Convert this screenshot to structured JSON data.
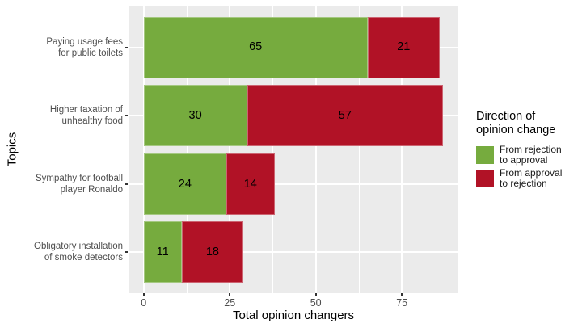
{
  "chart_data": {
    "type": "bar",
    "orientation": "horizontal",
    "stacked": true,
    "title": "",
    "xlabel": "Total opinion changers",
    "ylabel": "Topics",
    "categories": [
      [
        "Paying usage fees",
        "for public toilets"
      ],
      [
        "Higher taxation of",
        "unhealthy food"
      ],
      [
        "Sympathy for football",
        "player Ronaldo"
      ],
      [
        "Obligatory installation",
        "of smoke detectors"
      ]
    ],
    "series": [
      {
        "name": "From rejection to approval",
        "color": "#76ab3e",
        "values": [
          65,
          30,
          24,
          11
        ]
      },
      {
        "name": "From approval to rejection",
        "color": "#b11226",
        "values": [
          21,
          57,
          14,
          18
        ]
      }
    ],
    "totals": [
      86,
      87,
      38,
      29
    ],
    "x_ticks": [
      0,
      25,
      50,
      75
    ],
    "x_minor_ticks": [
      12.5,
      37.5,
      62.5,
      87.5
    ],
    "xlim": [
      -4.4,
      91.4
    ],
    "grid": true,
    "legend_position": "right"
  },
  "legend": {
    "title_lines": [
      "Direction of",
      "opinion change"
    ],
    "items": [
      {
        "label_lines": [
          "From rejection",
          "to approval"
        ],
        "color": "#76ab3e"
      },
      {
        "label_lines": [
          "From approval",
          "to rejection"
        ],
        "color": "#b11226"
      }
    ]
  },
  "colors": {
    "panel_bg": "#ebebeb",
    "gridline": "#ffffff",
    "tick_text": "#4d4d4d",
    "axis_title": "#000000",
    "bar_label": "#000000",
    "green": "#76ab3e",
    "red": "#b11226"
  }
}
